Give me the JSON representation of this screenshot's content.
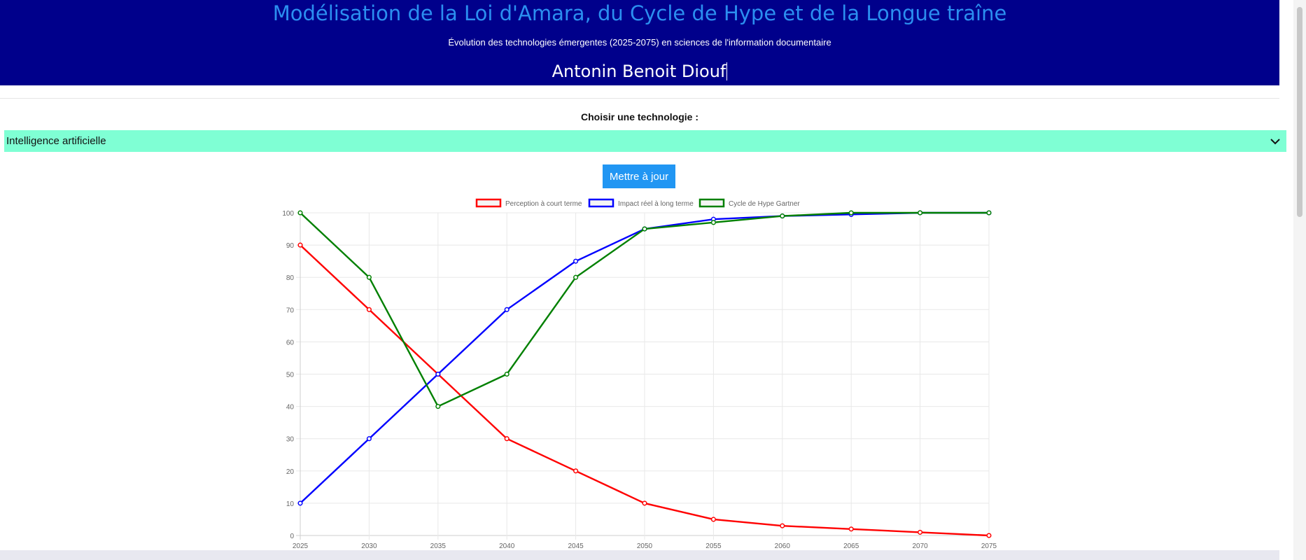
{
  "header": {
    "title": "Modélisation de la Loi d'Amara, du Cycle de Hype et de la Longue traîne",
    "subtitle": "Évolution des technologies émergentes (2025-2075) en sciences de l'information documentaire",
    "author": "Antonin Benoit Diouf"
  },
  "controls": {
    "select_label": "Choisir une technologie :",
    "selected_technology": "Intelligence artificielle",
    "update_label": "Mettre à jour"
  },
  "colors": {
    "header_bg": "#00008b",
    "title": "#2b8ff0",
    "select_bg": "#7fffd4",
    "button": "#2196f3"
  },
  "chart_data": {
    "type": "line",
    "x": [
      "2025",
      "2030",
      "2035",
      "2040",
      "2045",
      "2050",
      "2055",
      "2060",
      "2065",
      "2070",
      "2075"
    ],
    "ylim": [
      0,
      100
    ],
    "yticks": [
      0,
      10,
      20,
      30,
      40,
      50,
      60,
      70,
      80,
      90,
      100
    ],
    "grid": true,
    "legend": "top-center",
    "series": [
      {
        "name": "Perception à court terme",
        "color": "#ff0000",
        "values": [
          90,
          70,
          50,
          30,
          20,
          10,
          5,
          3,
          2,
          1,
          0
        ]
      },
      {
        "name": "Impact réel à long terme",
        "color": "#0000ff",
        "values": [
          10,
          30,
          50,
          70,
          85,
          95,
          98,
          99,
          99.5,
          100,
          100
        ]
      },
      {
        "name": "Cycle de Hype Gartner",
        "color": "#008000",
        "values": [
          100,
          80,
          40,
          50,
          80,
          95,
          97,
          99,
          100,
          100,
          100
        ]
      }
    ]
  }
}
